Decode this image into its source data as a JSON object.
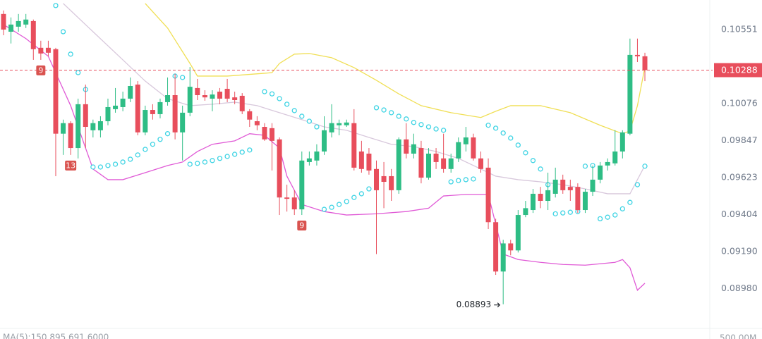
{
  "chart_data": {
    "type": "candlestick",
    "log_scale": true,
    "ylim": [
      0.08764,
      0.10747
    ],
    "yticks": [
      0.10551,
      0.10076,
      0.09847,
      0.09623,
      0.09404,
      {
        "value": 0.0919,
        "label": "0.09190"
      },
      {
        "value": 0.0898,
        "label": "0.08980"
      }
    ],
    "grid": false,
    "up_color": "#2ebd85",
    "down_color": "#e84e5c",
    "open": [
      0.10654,
      0.10537,
      0.1057,
      0.10584,
      0.10607,
      0.10432,
      0.10432,
      0.10423,
      0.09889,
      0.09954,
      0.09801,
      0.10072,
      0.0991,
      0.0991,
      0.09966,
      0.10041,
      0.10054,
      0.10107,
      0.10196,
      0.09897,
      0.10036,
      0.1001,
      0.10085,
      0.10129,
      0.09897,
      0.10019,
      0.10174,
      0.10129,
      0.10107,
      0.10151,
      0.10169,
      0.10115,
      0.10125,
      0.10028,
      0.09966,
      0.09931,
      0.09923,
      0.09854,
      0.09504,
      0.09504,
      0.09434,
      0.09716,
      0.09725,
      0.0978,
      0.09897,
      0.09941,
      0.09941,
      0.09954,
      0.0978,
      0.09767,
      0.09674,
      0.09631,
      0.09631,
      0.09547,
      0.09854,
      0.09767,
      0.09801,
      0.09622,
      0.09767,
      0.09738,
      0.09674,
      0.09738,
      0.09824,
      0.09866,
      0.09738,
      0.09682,
      0.09359,
      0.09076,
      0.09236,
      0.09196,
      0.09401,
      0.0943,
      0.09526,
      0.09484,
      0.09526,
      0.0961,
      0.09567,
      0.09567,
      0.0943,
      0.09538,
      0.0961,
      0.09695,
      0.09708,
      0.0978,
      0.09889,
      0.10386,
      0.10377
    ],
    "high": [
      0.10677,
      0.10631,
      0.10654,
      0.10654,
      0.10617,
      0.10478,
      0.10478,
      0.10432,
      0.09976,
      0.09966,
      0.10107,
      0.10196,
      0.09976,
      0.09997,
      0.10107,
      0.10174,
      0.10151,
      0.10241,
      0.10218,
      0.10063,
      0.10072,
      0.10107,
      0.10241,
      0.10264,
      0.10063,
      0.10308,
      0.10232,
      0.1016,
      0.1016,
      0.10174,
      0.10232,
      0.10151,
      0.10142,
      0.10041,
      0.09997,
      0.09954,
      0.09954,
      0.09866,
      0.0958,
      0.09547,
      0.0978,
      0.0978,
      0.09824,
      0.09997,
      0.10072,
      0.09976,
      0.09976,
      0.10041,
      0.09845,
      0.09801,
      0.09725,
      0.09716,
      0.09674,
      0.09866,
      0.09954,
      0.09889,
      0.09845,
      0.09801,
      0.09801,
      0.09889,
      0.09767,
      0.09866,
      0.09931,
      0.09889,
      0.0978,
      0.09738,
      0.09379,
      0.09257,
      0.09257,
      0.0943,
      0.09484,
      0.09555,
      0.09567,
      0.09652,
      0.09682,
      0.0964,
      0.0961,
      0.09588,
      0.09555,
      0.09695,
      0.09716,
      0.09738,
      0.0991,
      0.0991,
      0.10492,
      0.10492,
      0.104
    ],
    "low": [
      0.10514,
      0.1046,
      0.10537,
      0.10561,
      0.10354,
      0.10354,
      0.10377,
      0.09631,
      0.09759,
      0.09759,
      0.09738,
      0.09801,
      0.09866,
      0.09866,
      0.09941,
      0.10019,
      0.10028,
      0.10085,
      0.09879,
      0.09879,
      0.09976,
      0.09984,
      0.10063,
      0.09854,
      0.09725,
      0.09997,
      0.10098,
      0.10094,
      0.10028,
      0.10072,
      0.10085,
      0.10072,
      0.1001,
      0.09931,
      0.0991,
      0.09845,
      0.09665,
      0.09401,
      0.09421,
      0.09401,
      0.09401,
      0.09695,
      0.09695,
      0.09759,
      0.09866,
      0.09879,
      0.09931,
      0.09665,
      0.09652,
      0.0964,
      0.09175,
      0.09441,
      0.09484,
      0.09526,
      0.09738,
      0.09738,
      0.09588,
      0.0961,
      0.09674,
      0.09652,
      0.09652,
      0.09716,
      0.0978,
      0.09725,
      0.09652,
      0.09319,
      0.09057,
      0.08893,
      0.09168,
      0.09184,
      0.09388,
      0.09413,
      0.09441,
      0.0943,
      0.09504,
      0.09526,
      0.09484,
      0.09413,
      0.09413,
      0.09513,
      0.09588,
      0.09665,
      0.09695,
      0.09738,
      0.09879,
      0.1034,
      0.10218
    ],
    "close": [
      0.10551,
      0.10584,
      0.10607,
      0.10617,
      0.10423,
      0.10395,
      0.104,
      0.09889,
      0.09954,
      0.09801,
      0.10072,
      0.09931,
      0.09954,
      0.09966,
      0.10054,
      0.10063,
      0.10107,
      0.10187,
      0.09897,
      0.10036,
      0.1001,
      0.10085,
      0.10129,
      0.09897,
      0.10019,
      0.10182,
      0.10129,
      0.10115,
      0.10133,
      0.10107,
      0.10107,
      0.10098,
      0.10028,
      0.09976,
      0.09941,
      0.09854,
      0.09845,
      0.09504,
      0.09496,
      0.09434,
      0.09725,
      0.09738,
      0.0978,
      0.0991,
      0.09954,
      0.09954,
      0.09958,
      0.09682,
      0.09674,
      0.09665,
      0.09547,
      0.09597,
      0.09547,
      0.09854,
      0.09767,
      0.09824,
      0.09622,
      0.09767,
      0.09716,
      0.09674,
      0.09738,
      0.09837,
      0.09866,
      0.09738,
      0.09674,
      0.09359,
      0.09076,
      0.09236,
      0.09196,
      0.09401,
      0.09441,
      0.09526,
      0.09484,
      0.09547,
      0.0961,
      0.09547,
      0.09547,
      0.0943,
      0.09538,
      0.0961,
      0.09695,
      0.09716,
      0.0978,
      0.09897,
      0.10386,
      0.10377,
      0.10288
    ],
    "overlays": [
      {
        "type": "line",
        "color": "#f0df55",
        "x": [
          19,
          22,
          25,
          26,
          30,
          35,
          36,
          37,
          39,
          41,
          44,
          47,
          50,
          53,
          56,
          60,
          64,
          66,
          68,
          72,
          76,
          80,
          83,
          84,
          85,
          86
        ],
        "values": [
          0.10724,
          0.10561,
          0.10331,
          0.1025,
          0.1025,
          0.10268,
          0.10272,
          0.10331,
          0.10391,
          0.10395,
          0.10368,
          0.10304,
          0.10223,
          0.10137,
          0.10063,
          0.10019,
          0.09989,
          0.10028,
          0.10063,
          0.10063,
          0.10019,
          0.09941,
          0.09889,
          0.09906,
          0.10063,
          0.10308
        ]
      },
      {
        "type": "line",
        "color": "#d8c8dc",
        "x": [
          8,
          12,
          16,
          19,
          22,
          25,
          28,
          31,
          34,
          37,
          40,
          43,
          46,
          49,
          52,
          55,
          58,
          61,
          64,
          66,
          69,
          72,
          75,
          78,
          81,
          84,
          86
        ],
        "values": [
          0.10724,
          0.10537,
          0.10354,
          0.10218,
          0.10107,
          0.10063,
          0.10072,
          0.10085,
          0.10063,
          0.10019,
          0.09976,
          0.09931,
          0.0991,
          0.09866,
          0.09824,
          0.0981,
          0.0978,
          0.09738,
          0.09674,
          0.09631,
          0.0961,
          0.09597,
          0.0958,
          0.09555,
          0.09526,
          0.09526,
          0.09695
        ]
      },
      {
        "type": "line",
        "color": "#e05ad6",
        "x": [
          0,
          3,
          6,
          9,
          11,
          12,
          14,
          16,
          19,
          22,
          24,
          26,
          28,
          31,
          33,
          35,
          37,
          38,
          40,
          43,
          46,
          50,
          54,
          57,
          59,
          62,
          65,
          67,
          69,
          72,
          75,
          78,
          82,
          83,
          84,
          85,
          86
        ],
        "values": [
          0.10584,
          0.10492,
          0.10377,
          0.10063,
          0.09801,
          0.09674,
          0.0961,
          0.0961,
          0.09652,
          0.09695,
          0.09716,
          0.0978,
          0.09824,
          0.09845,
          0.09889,
          0.09879,
          0.09801,
          0.09631,
          0.09463,
          0.09421,
          0.09401,
          0.09408,
          0.09421,
          0.09441,
          0.09513,
          0.09522,
          0.09522,
          0.09175,
          0.09144,
          0.09128,
          0.09116,
          0.09112,
          0.09128,
          0.09144,
          0.09097,
          0.08971,
          0.0901
        ]
      },
      {
        "type": "scatter",
        "color": "#3fd4e4",
        "x": [
          7,
          8,
          9,
          10,
          11,
          12,
          13,
          14,
          15,
          16,
          17,
          18,
          19,
          20,
          21,
          22,
          23,
          24,
          25,
          26,
          27,
          28,
          29,
          30,
          31,
          32,
          33,
          35,
          36,
          37,
          38,
          39,
          40,
          41,
          42,
          43,
          44,
          45,
          46,
          47,
          48,
          49,
          50,
          51,
          52,
          53,
          54,
          55,
          56,
          57,
          58,
          59,
          60,
          61,
          62,
          63,
          65,
          66,
          67,
          68,
          69,
          70,
          71,
          72,
          73,
          74,
          75,
          76,
          77,
          78,
          79,
          80,
          81,
          82,
          83,
          84,
          85,
          86
        ],
        "values": [
          0.1071,
          0.10537,
          0.10391,
          0.10272,
          0.10165,
          0.09686,
          0.09686,
          0.09695,
          0.09703,
          0.09716,
          0.09733,
          0.09759,
          0.09793,
          0.09824,
          0.09854,
          0.09889,
          0.1025,
          0.10241,
          0.09703,
          0.09708,
          0.09716,
          0.09725,
          0.09738,
          0.0975,
          0.09763,
          0.09776,
          0.09789,
          0.10151,
          0.10137,
          0.10107,
          0.10072,
          0.10032,
          0.09997,
          0.09966,
          0.09931,
          0.09434,
          0.09446,
          0.09463,
          0.0948,
          0.09504,
          0.09526,
          0.09555,
          0.1005,
          0.10036,
          0.10019,
          0.09997,
          0.0998,
          0.09958,
          0.09945,
          0.09931,
          0.09918,
          0.0991,
          0.09597,
          0.09605,
          0.0961,
          0.09614,
          0.09941,
          0.09923,
          0.09893,
          0.09862,
          0.09819,
          0.09772,
          0.09725,
          0.09674,
          0.0958,
          0.09408,
          0.09413,
          0.09417,
          0.09421,
          0.09691,
          0.09695,
          0.09379,
          0.09388,
          0.09401,
          0.09437,
          0.09475,
          0.0958,
          0.09691
        ]
      }
    ],
    "current_price": {
      "value": 0.10288,
      "label": "0.10288"
    },
    "low_label": {
      "value": 0.08893,
      "label": "0.08893"
    },
    "td_markers": [
      {
        "label": "9"
      },
      {
        "label": "13"
      },
      {
        "label": "9"
      }
    ],
    "volume_ma_label": "MA(5):150,895,691.6000",
    "volume_axis_label": "500.00M"
  }
}
